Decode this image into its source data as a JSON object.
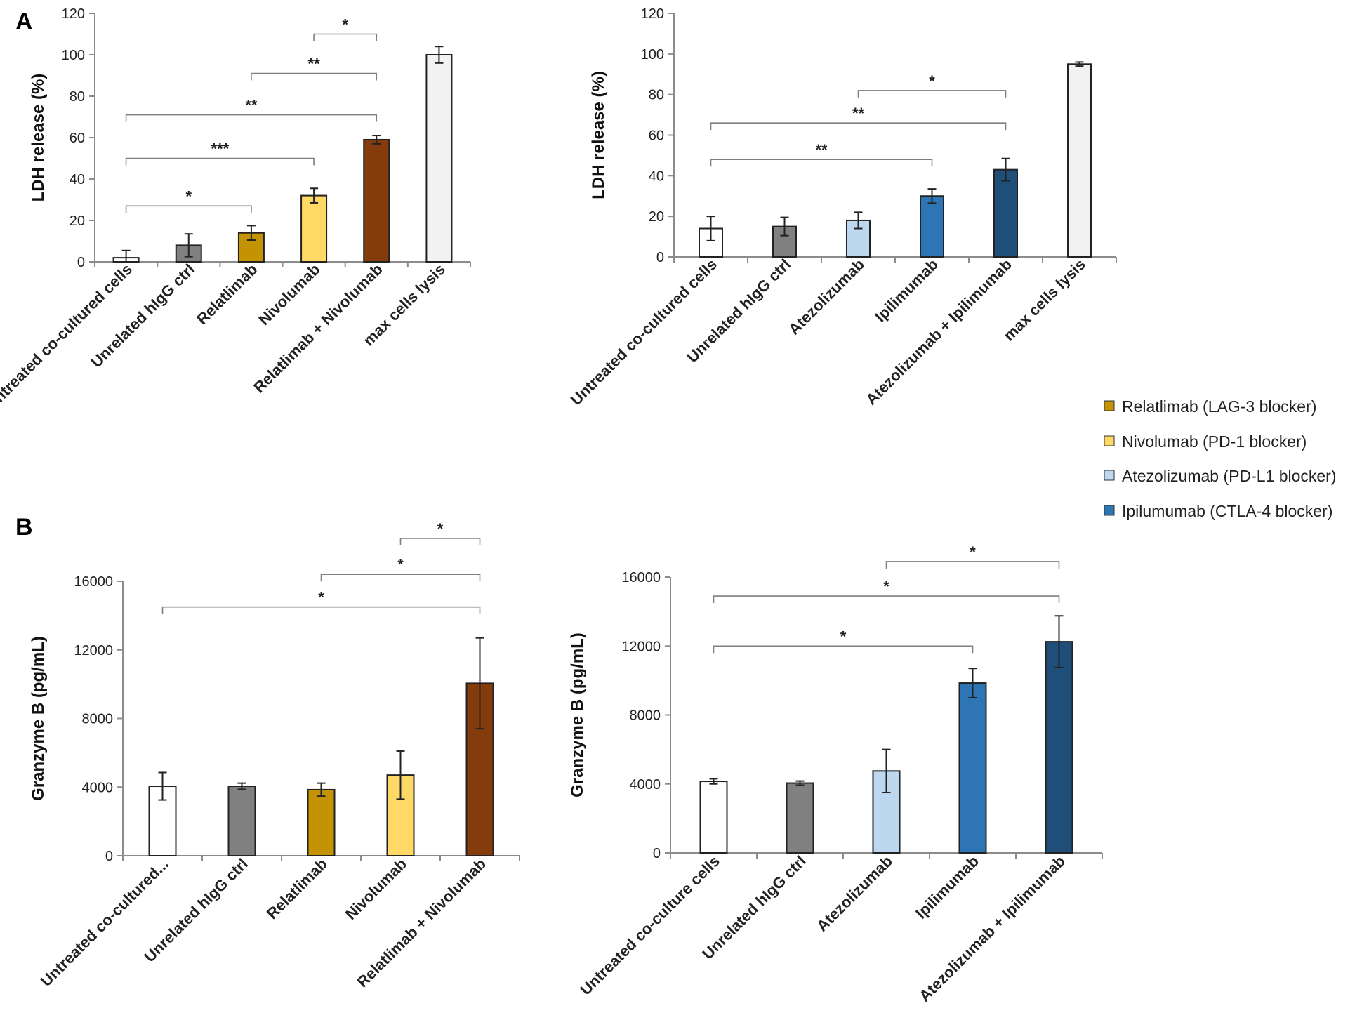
{
  "panels": {
    "a": "A",
    "b": "B"
  },
  "legend": [
    {
      "label": "Relatlimab (LAG-3 blocker)",
      "color": "#c49303"
    },
    {
      "label": "Nivolumab (PD-1 blocker)",
      "color": "#ffd966"
    },
    {
      "label": "Atezolizumab (PD-L1 blocker)",
      "color": "#bdd7ee"
    },
    {
      "label": "Ipilumumab (CTLA-4 blocker)",
      "color": "#2e75b6"
    }
  ],
  "chart_data": [
    {
      "type": "bar",
      "panel": "A-left",
      "ylabel": "LDH release (%)",
      "ylim": [
        0,
        120
      ],
      "yticks": [
        0,
        20,
        40,
        60,
        80,
        100,
        120
      ],
      "categories": [
        "Untreated co-cultured cells",
        "Unrelated hIgG ctrl",
        "Relatlimab",
        "Nivolumab",
        "Relatlimab + Nivolumab",
        "max cells lysis"
      ],
      "values": [
        2,
        8,
        14,
        32,
        59,
        100
      ],
      "errors": [
        3.5,
        5.5,
        3.5,
        3.5,
        2,
        4
      ],
      "colors": [
        "#ffffff",
        "#808080",
        "#c49303",
        "#ffd966",
        "#843c0c",
        "#f2f2f2"
      ],
      "significance": [
        {
          "from": 0,
          "to": 2,
          "label": "*",
          "y": 27
        },
        {
          "from": 0,
          "to": 3,
          "label": "***",
          "y": 50
        },
        {
          "from": 0,
          "to": 4,
          "label": "**",
          "y": 71
        },
        {
          "from": 2,
          "to": 4,
          "label": "**",
          "y": 91
        },
        {
          "from": 3,
          "to": 4,
          "label": "*",
          "y": 110
        }
      ]
    },
    {
      "type": "bar",
      "panel": "A-right",
      "ylabel": "LDH release (%)",
      "ylim": [
        0,
        120
      ],
      "yticks": [
        0,
        20,
        40,
        60,
        80,
        100,
        120
      ],
      "categories": [
        "Untreated co-cultured cells",
        "Unrelated hIgG ctrl",
        "Atezolizumab",
        "Ipilimumab",
        "Atezolizumab + Ipilimumab",
        "max cells lysis"
      ],
      "values": [
        14,
        15,
        18,
        30,
        43,
        95
      ],
      "errors": [
        6,
        4.5,
        4,
        3.5,
        5.5,
        1
      ],
      "colors": [
        "#ffffff",
        "#808080",
        "#bdd7ee",
        "#2e75b6",
        "#1f4e79",
        "#f2f2f2"
      ],
      "significance": [
        {
          "from": 0,
          "to": 3,
          "label": "**",
          "y": 48
        },
        {
          "from": 0,
          "to": 4,
          "label": "**",
          "y": 66
        },
        {
          "from": 2,
          "to": 4,
          "label": "*",
          "y": 82
        }
      ]
    },
    {
      "type": "bar",
      "panel": "B-left",
      "ylabel": "Granzyme B (pg/mL)",
      "ylim": [
        0,
        16000
      ],
      "yticks": [
        0,
        4000,
        8000,
        12000,
        16000
      ],
      "categories": [
        "Untreated co-cultured...",
        "Unrelated hIgG ctrl",
        "Relatlimab",
        "Nivolumab",
        "Relatlimab + Nivolumab"
      ],
      "values": [
        4050,
        4050,
        3850,
        4700,
        10050
      ],
      "errors": [
        800,
        180,
        380,
        1400,
        2650
      ],
      "colors": [
        "#ffffff",
        "#808080",
        "#c49303",
        "#ffd966",
        "#843c0c"
      ],
      "significance": [
        {
          "from": 0,
          "to": 4,
          "label": "*",
          "y": 14500
        },
        {
          "from": 2,
          "to": 4,
          "label": "*",
          "y": 16400
        },
        {
          "from": 3,
          "to": 4,
          "label": "*",
          "y": 18500
        }
      ]
    },
    {
      "type": "bar",
      "panel": "B-right",
      "ylabel": "Granzyme B (pg/mL)",
      "ylim": [
        0,
        16000
      ],
      "yticks": [
        0,
        4000,
        8000,
        12000,
        16000
      ],
      "categories": [
        "Untreated co-culture cells",
        "Unrelated hIgG ctrl",
        "Atezolizumab",
        "Ipilimumab",
        "Atezolizumab + Ipilimumab"
      ],
      "values": [
        4150,
        4050,
        4750,
        9850,
        12250
      ],
      "errors": [
        150,
        120,
        1250,
        850,
        1500
      ],
      "colors": [
        "#ffffff",
        "#808080",
        "#bdd7ee",
        "#2e75b6",
        "#1f4e79"
      ],
      "significance": [
        {
          "from": 0,
          "to": 3,
          "label": "*",
          "y": 12000
        },
        {
          "from": 0,
          "to": 4,
          "label": "*",
          "y": 14900
        },
        {
          "from": 2,
          "to": 4,
          "label": "*",
          "y": 16900
        }
      ]
    }
  ]
}
